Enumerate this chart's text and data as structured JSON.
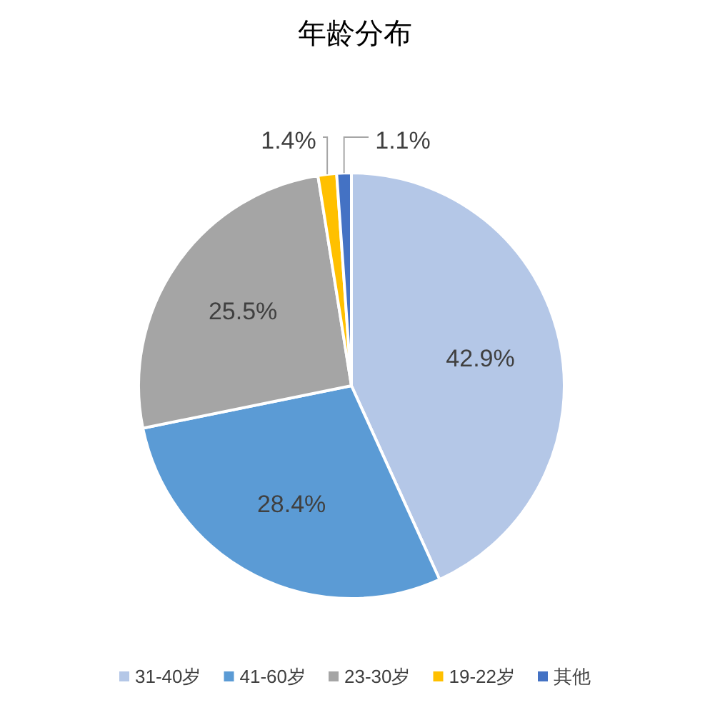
{
  "chart_data": {
    "type": "pie",
    "title": "年龄分布",
    "categories": [
      "31-40岁",
      "41-60岁",
      "23-30岁",
      "19-22岁",
      "其他"
    ],
    "values": [
      42.9,
      28.4,
      25.5,
      1.4,
      1.1
    ],
    "value_labels": [
      "42.9%",
      "28.4%",
      "25.5%",
      "1.4%",
      "1.1%"
    ],
    "colors": [
      "#b4c7e7",
      "#5b9bd5",
      "#a5a5a5",
      "#ffc000",
      "#4472c4"
    ],
    "legend": "bottom"
  }
}
